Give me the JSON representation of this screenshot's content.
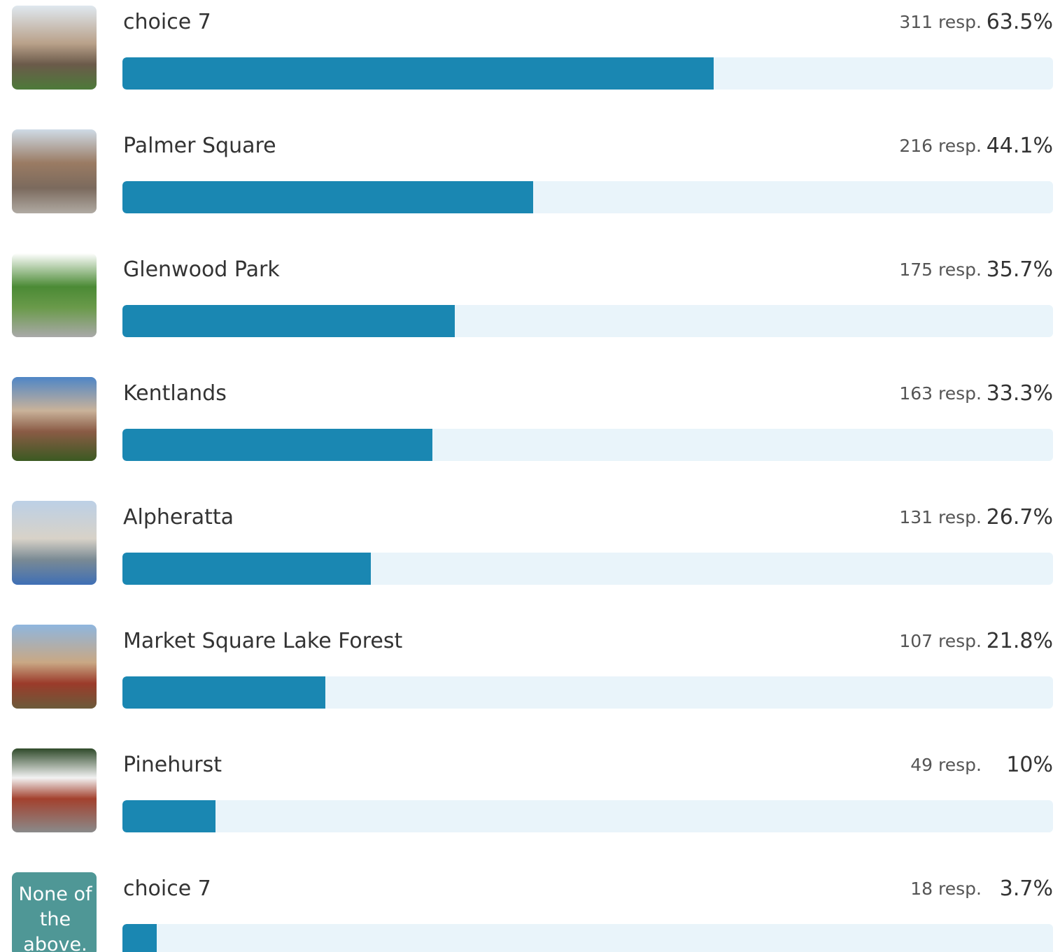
{
  "items": [
    {
      "label": "choice 7",
      "responses": "311 resp.",
      "percent": 63.5,
      "percent_label": "63.5%"
    },
    {
      "label": "Palmer Square",
      "responses": "216 resp.",
      "percent": 44.1,
      "percent_label": "44.1%"
    },
    {
      "label": "Glenwood Park",
      "responses": "175 resp.",
      "percent": 35.7,
      "percent_label": "35.7%"
    },
    {
      "label": "Kentlands",
      "responses": "163 resp.",
      "percent": 33.3,
      "percent_label": "33.3%"
    },
    {
      "label": "Alpheratta",
      "responses": "131 resp.",
      "percent": 26.7,
      "percent_label": "26.7%"
    },
    {
      "label": "Market Square Lake Forest",
      "responses": "107 resp.",
      "percent": 21.8,
      "percent_label": "21.8%"
    },
    {
      "label": "Pinehurst",
      "responses": "49 resp.",
      "percent": 10,
      "percent_label": "10%"
    },
    {
      "label": "choice 7",
      "responses": "18 resp.",
      "percent": 3.7,
      "percent_label": "3.7%",
      "thumb_text": "None of the above."
    }
  ]
}
